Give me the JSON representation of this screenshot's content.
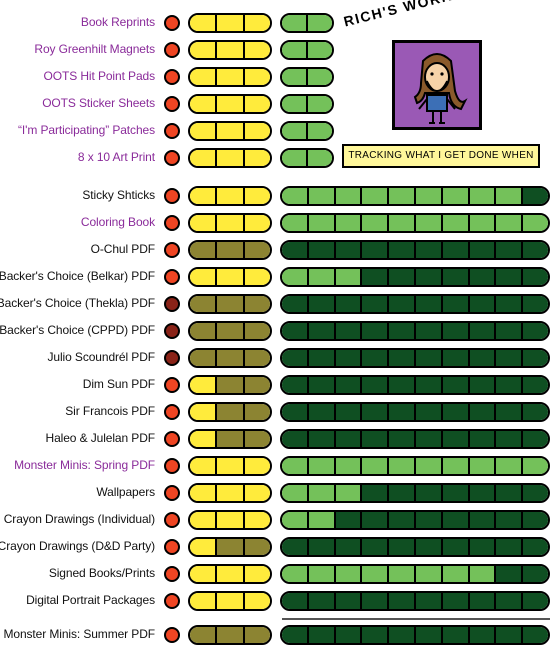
{
  "header": {
    "title": "RICH'S WORKOMETER!",
    "tracking_label": "TRACKING WHAT I GET DONE WHEN"
  },
  "colors": {
    "label_purple": "#8a2b9a",
    "label_black": "#111111",
    "dot_bright": "#ef4523",
    "dot_dark": "#8a2318",
    "yellow_bright": "#ffeb3c",
    "yellow_dark": "#8c8432",
    "green_bright": "#74c15a",
    "green_dark": "#0f4f22"
  },
  "rows": [
    {
      "label": "Book Reprints",
      "label_color": "purple",
      "dot": "bright",
      "yellow_filled": 3,
      "green_total": 2,
      "green_filled": 2
    },
    {
      "label": "Roy Greenhilt Magnets",
      "label_color": "purple",
      "dot": "bright",
      "yellow_filled": 3,
      "green_total": 2,
      "green_filled": 2
    },
    {
      "label": "OOTS Hit Point Pads",
      "label_color": "purple",
      "dot": "bright",
      "yellow_filled": 3,
      "green_total": 2,
      "green_filled": 2
    },
    {
      "label": "OOTS Sticker Sheets",
      "label_color": "purple",
      "dot": "bright",
      "yellow_filled": 3,
      "green_total": 2,
      "green_filled": 2
    },
    {
      "label": "“I'm Participating” Patches",
      "label_color": "purple",
      "dot": "bright",
      "yellow_filled": 3,
      "green_total": 2,
      "green_filled": 2
    },
    {
      "label": "8 x 10 Art Print",
      "label_color": "purple",
      "dot": "bright",
      "yellow_filled": 3,
      "green_total": 2,
      "green_filled": 2
    },
    {
      "label": "Sticky Shticks",
      "label_color": "black",
      "dot": "bright",
      "yellow_filled": 3,
      "green_total": 10,
      "green_filled": 9
    },
    {
      "label": "Coloring Book",
      "label_color": "purple",
      "dot": "bright",
      "yellow_filled": 3,
      "green_total": 10,
      "green_filled": 10
    },
    {
      "label": "O-Chul PDF",
      "label_color": "black",
      "dot": "bright",
      "yellow_filled": 0,
      "green_total": 10,
      "green_filled": 0
    },
    {
      "label": "Backer's Choice (Belkar) PDF",
      "label_color": "black",
      "dot": "bright",
      "yellow_filled": 3,
      "green_total": 10,
      "green_filled": 3
    },
    {
      "label": "Backer's Choice (Thekla) PDF",
      "label_color": "black",
      "dot": "dark",
      "yellow_filled": 0,
      "green_total": 10,
      "green_filled": 0
    },
    {
      "label": "Backer's Choice (CPPD) PDF",
      "label_color": "black",
      "dot": "dark",
      "yellow_filled": 0,
      "green_total": 10,
      "green_filled": 0
    },
    {
      "label": "Julio Scoundrél PDF",
      "label_color": "black",
      "dot": "dark",
      "yellow_filled": 0,
      "green_total": 10,
      "green_filled": 0
    },
    {
      "label": "Dim Sun PDF",
      "label_color": "black",
      "dot": "bright",
      "yellow_filled": 1,
      "green_total": 10,
      "green_filled": 0
    },
    {
      "label": "Sir Francois  PDF",
      "label_color": "black",
      "dot": "bright",
      "yellow_filled": 1,
      "green_total": 10,
      "green_filled": 0
    },
    {
      "label": "Haleo & Julelan PDF",
      "label_color": "black",
      "dot": "bright",
      "yellow_filled": 1,
      "green_total": 10,
      "green_filled": 0
    },
    {
      "label": "Monster Minis: Spring PDF",
      "label_color": "purple",
      "dot": "bright",
      "yellow_filled": 3,
      "green_total": 10,
      "green_filled": 10
    },
    {
      "label": "Wallpapers",
      "label_color": "black",
      "dot": "bright",
      "yellow_filled": 3,
      "green_total": 10,
      "green_filled": 3
    },
    {
      "label": "Crayon Drawings (Individual)",
      "label_color": "black",
      "dot": "bright",
      "yellow_filled": 3,
      "green_total": 10,
      "green_filled": 2
    },
    {
      "label": "Crayon Drawings (D&D Party)",
      "label_color": "black",
      "dot": "bright",
      "yellow_filled": 1,
      "green_total": 10,
      "green_filled": 0
    },
    {
      "label": "Signed Books/Prints",
      "label_color": "black",
      "dot": "bright",
      "yellow_filled": 3,
      "green_total": 10,
      "green_filled": 8
    },
    {
      "label": "Digital Portrait Packages",
      "label_color": "black",
      "dot": "bright",
      "yellow_filled": 3,
      "green_total": 10,
      "green_filled": 0
    },
    {
      "label": "Monster Minis: Summer PDF",
      "label_color": "black",
      "dot": "bright",
      "yellow_filled": 0,
      "green_total": 10,
      "green_filled": 0
    }
  ]
}
